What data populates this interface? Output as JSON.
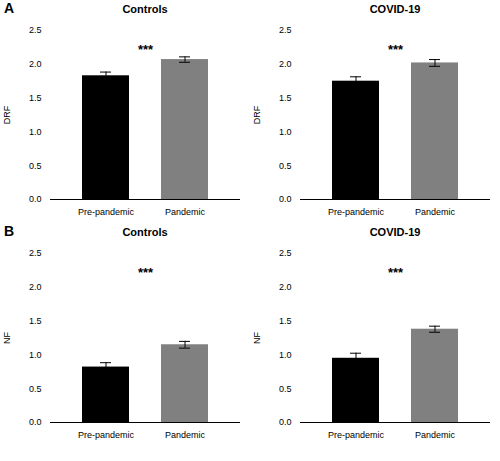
{
  "chart_data": [
    {
      "type": "bar",
      "title": "Controls",
      "ylabel": "DRF",
      "panel_label": "A",
      "categories": [
        "Pre-pandemic",
        "Pandemic"
      ],
      "values": [
        1.83,
        2.07
      ],
      "errors": [
        0.055,
        0.04
      ],
      "colors": [
        "#000000",
        "#808080"
      ],
      "ylim": [
        0,
        2.5
      ],
      "yticks": [
        {
          "value": 0,
          "label": "0.0"
        },
        {
          "value": 0.5,
          "label": "0.5"
        },
        {
          "value": 1,
          "label": "1.0"
        },
        {
          "value": 1.5,
          "label": "1.5"
        },
        {
          "value": 2,
          "label": "2.0"
        },
        {
          "value": 2.5,
          "label": "2.5"
        }
      ],
      "annotations": [
        {
          "text": "***",
          "y": 2.22
        }
      ]
    },
    {
      "type": "bar",
      "title": "COVID-19",
      "ylabel": "DRF",
      "categories": [
        "Pre-pandemic",
        "Pandemic"
      ],
      "values": [
        1.75,
        2.02
      ],
      "errors": [
        0.065,
        0.05
      ],
      "colors": [
        "#000000",
        "#808080"
      ],
      "ylim": [
        0,
        2.5
      ],
      "yticks": [
        {
          "value": 0,
          "label": "0.0"
        },
        {
          "value": 0.5,
          "label": "0.5"
        },
        {
          "value": 1,
          "label": "1.0"
        },
        {
          "value": 1.5,
          "label": "1.5"
        },
        {
          "value": 2,
          "label": "2.0"
        },
        {
          "value": 2.5,
          "label": "2.5"
        }
      ],
      "annotations": [
        {
          "text": "***",
          "y": 2.22
        }
      ]
    },
    {
      "type": "bar",
      "title": "Controls",
      "ylabel": "NF",
      "panel_label": "B",
      "categories": [
        "Pre-pandemic",
        "Pandemic"
      ],
      "values": [
        0.82,
        1.15
      ],
      "errors": [
        0.065,
        0.05
      ],
      "colors": [
        "#000000",
        "#808080"
      ],
      "ylim": [
        0,
        2.5
      ],
      "yticks": [
        {
          "value": 0,
          "label": "0.0"
        },
        {
          "value": 0.5,
          "label": "0.5"
        },
        {
          "value": 1,
          "label": "1.0"
        },
        {
          "value": 1.5,
          "label": "1.5"
        },
        {
          "value": 2,
          "label": "2.0"
        },
        {
          "value": 2.5,
          "label": "2.5"
        }
      ],
      "annotations": [
        {
          "text": "***",
          "y": 2.22
        }
      ]
    },
    {
      "type": "bar",
      "title": "COVID-19",
      "ylabel": "NF",
      "categories": [
        "Pre-pandemic",
        "Pandemic"
      ],
      "values": [
        0.95,
        1.38
      ],
      "errors": [
        0.075,
        0.045
      ],
      "colors": [
        "#000000",
        "#808080"
      ],
      "ylim": [
        0,
        2.5
      ],
      "yticks": [
        {
          "value": 0,
          "label": "0.0"
        },
        {
          "value": 0.5,
          "label": "0.5"
        },
        {
          "value": 1,
          "label": "1.0"
        },
        {
          "value": 1.5,
          "label": "1.5"
        },
        {
          "value": 2,
          "label": "2.0"
        },
        {
          "value": 2.5,
          "label": "2.5"
        }
      ],
      "annotations": [
        {
          "text": "***",
          "y": 2.22
        }
      ]
    }
  ]
}
